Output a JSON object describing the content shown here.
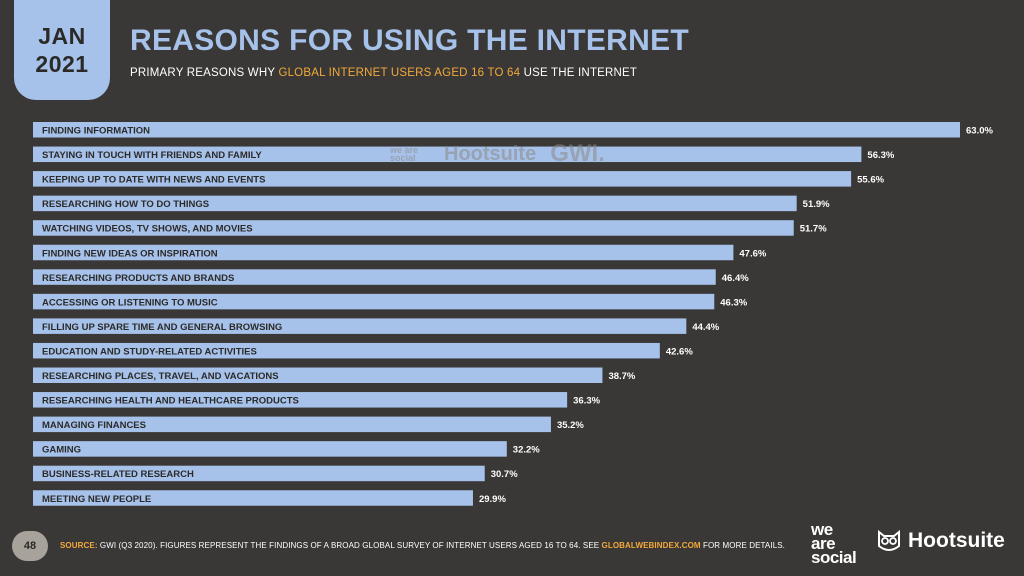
{
  "header": {
    "date_month": "JAN",
    "date_year": "2021",
    "title": "REASONS FOR USING THE INTERNET",
    "subtitle_pre": "PRIMARY REASONS WHY ",
    "subtitle_highlight": "GLOBAL INTERNET USERS AGED 16 TO 64",
    "subtitle_post": " USE THE INTERNET"
  },
  "watermark": {
    "we_are_social": "we are social",
    "hootsuite": "Hootsuite",
    "gwi": "GWI."
  },
  "footer": {
    "page_number": "48",
    "source_label": "SOURCE:",
    "source_text": " GWI (Q3 2020). FIGURES REPRESENT THE FINDINGS OF A BROAD GLOBAL SURVEY OF INTERNET USERS AGED 16 TO 64. SEE ",
    "source_link": "GLOBALWEBINDEX.COM",
    "source_end": " FOR MORE DETAILS.",
    "logo_we": "we",
    "logo_are": "are",
    "logo_social": "social",
    "logo_hootsuite": "Hootsuite"
  },
  "colors": {
    "bar": "#a7c2ea",
    "background": "#3a3836",
    "accent": "#f2a93b"
  },
  "chart_data": {
    "type": "bar",
    "orientation": "horizontal",
    "title": "REASONS FOR USING THE INTERNET",
    "categories": [
      "FINDING INFORMATION",
      "STAYING IN TOUCH WITH FRIENDS AND FAMILY",
      "KEEPING UP TO DATE WITH NEWS AND EVENTS",
      "RESEARCHING HOW TO DO THINGS",
      "WATCHING VIDEOS, TV SHOWS, AND MOVIES",
      "FINDING NEW IDEAS OR INSPIRATION",
      "RESEARCHING PRODUCTS AND BRANDS",
      "ACCESSING OR LISTENING TO MUSIC",
      "FILLING UP SPARE TIME AND GENERAL BROWSING",
      "EDUCATION AND STUDY-RELATED ACTIVITIES",
      "RESEARCHING PLACES, TRAVEL, AND VACATIONS",
      "RESEARCHING HEALTH AND HEALTHCARE PRODUCTS",
      "MANAGING FINANCES",
      "GAMING",
      "BUSINESS-RELATED RESEARCH",
      "MEETING NEW PEOPLE"
    ],
    "values": [
      63.0,
      56.3,
      55.6,
      51.9,
      51.7,
      47.6,
      46.4,
      46.3,
      44.4,
      42.6,
      38.7,
      36.3,
      35.2,
      32.2,
      30.7,
      29.9
    ],
    "value_labels": [
      "63.0%",
      "56.3%",
      "55.6%",
      "51.9%",
      "51.7%",
      "47.6%",
      "46.4%",
      "46.3%",
      "44.4%",
      "42.6%",
      "38.7%",
      "36.3%",
      "35.2%",
      "32.2%",
      "30.7%",
      "29.9%"
    ],
    "xlim": [
      0,
      63.0
    ],
    "grid": false,
    "legend": "none"
  }
}
